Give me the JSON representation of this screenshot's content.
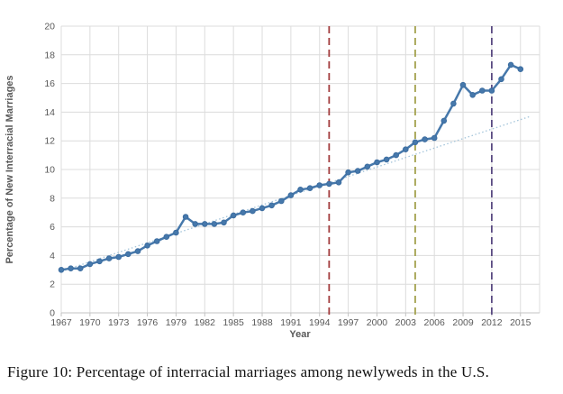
{
  "figure": {
    "caption": "Figure 10: Percentage of interracial marriages among newlyweds in the U.S."
  },
  "chart_data": {
    "type": "line",
    "title": "",
    "xlabel": "Year",
    "ylabel": "Percentage of New Interracial Marriages",
    "xlim": [
      1967,
      2017
    ],
    "ylim": [
      0,
      20
    ],
    "ytick_step": 2,
    "yticks": [
      0,
      2,
      4,
      6,
      8,
      10,
      12,
      14,
      16,
      18,
      20
    ],
    "xticks": [
      1967,
      1970,
      1973,
      1976,
      1979,
      1982,
      1985,
      1988,
      1991,
      1994,
      1997,
      2000,
      2003,
      2006,
      2009,
      2012,
      2015
    ],
    "grid": true,
    "legend": "none",
    "colors": {
      "series": "#4678ab",
      "series_marker": "#3c6da0",
      "trendline": "#a3c4da",
      "gridline": "#dcdcdc",
      "axis_line": "#c3c3c3",
      "axis_text": "#595959",
      "ref_red": "#a23b3c",
      "ref_olive": "#a3a24e",
      "ref_purple": "#5a4b82"
    },
    "series": [
      {
        "name": "Percentage of new interracial marriages",
        "x": [
          1967,
          1968,
          1969,
          1970,
          1971,
          1972,
          1973,
          1974,
          1975,
          1976,
          1977,
          1978,
          1979,
          1980,
          1981,
          1982,
          1983,
          1984,
          1985,
          1986,
          1987,
          1988,
          1989,
          1990,
          1991,
          1992,
          1993,
          1994,
          1995,
          1996,
          1997,
          1998,
          1999,
          2000,
          2001,
          2002,
          2003,
          2004,
          2005,
          2006,
          2007,
          2008,
          2009,
          2010,
          2011,
          2012,
          2013,
          2014,
          2015
        ],
        "values": [
          3.0,
          3.1,
          3.1,
          3.4,
          3.6,
          3.8,
          3.9,
          4.1,
          4.3,
          4.7,
          5.0,
          5.3,
          5.6,
          6.7,
          6.2,
          6.2,
          6.2,
          6.3,
          6.8,
          7.0,
          7.1,
          7.3,
          7.5,
          7.8,
          8.2,
          8.6,
          8.7,
          8.9,
          9.0,
          9.1,
          9.8,
          9.9,
          10.2,
          10.5,
          10.7,
          11.0,
          11.4,
          11.9,
          12.1,
          12.2,
          13.4,
          14.6,
          15.9,
          15.2,
          15.5,
          15.5,
          16.3,
          17.3,
          17.0
        ]
      }
    ],
    "trendline": {
      "style": "dotted",
      "x": [
        1967,
        2016
      ],
      "values": [
        2.9,
        13.7
      ]
    },
    "reference_lines": [
      {
        "label": "1995",
        "x": 1995,
        "color": "#a23b3c",
        "style": "dashed"
      },
      {
        "label": "2004",
        "x": 2004,
        "color": "#a3a24e",
        "style": "dashed"
      },
      {
        "label": "2012",
        "x": 2012,
        "color": "#5a4b82",
        "style": "dashed"
      }
    ]
  }
}
